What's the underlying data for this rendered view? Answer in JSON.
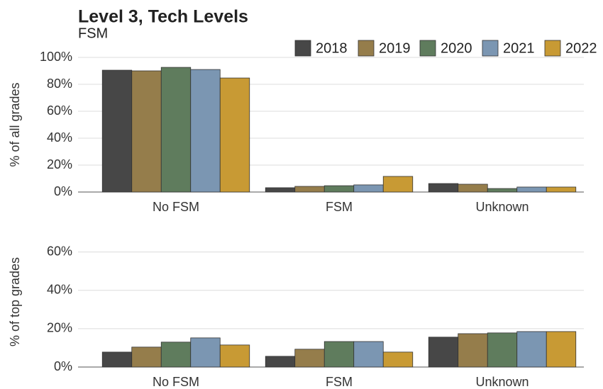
{
  "title": "Level 3, Tech Levels",
  "subtitle": "FSM",
  "chart_data": [
    {
      "type": "bar",
      "ylabel": "% of all grades",
      "categories": [
        "No FSM",
        "FSM",
        "Unknown"
      ],
      "series": [
        {
          "name": "2018",
          "color": "#474747",
          "values": [
            90.5,
            3.2,
            6.3
          ]
        },
        {
          "name": "2019",
          "color": "#957d4b",
          "values": [
            90,
            4.2,
            5.8
          ]
        },
        {
          "name": "2020",
          "color": "#5f7c5d",
          "values": [
            92.6,
            4.7,
            2.6
          ]
        },
        {
          "name": "2021",
          "color": "#7b96b2",
          "values": [
            91,
            5.3,
            3.7
          ]
        },
        {
          "name": "2022",
          "color": "#c89a34",
          "values": [
            84.7,
            11.6,
            3.7
          ]
        }
      ],
      "ylim": [
        0,
        100
      ],
      "yticks": [
        {
          "value": 0,
          "label": "0%"
        },
        {
          "value": 20,
          "label": "20%"
        },
        {
          "value": 40,
          "label": "40%"
        },
        {
          "value": 60,
          "label": "60%"
        },
        {
          "value": 80,
          "label": "80%"
        },
        {
          "value": 100,
          "label": "100%"
        }
      ],
      "grid": true,
      "legend": "top-right"
    },
    {
      "type": "bar",
      "ylabel": "% of top grades",
      "categories": [
        "No FSM",
        "FSM",
        "Unknown"
      ],
      "series": [
        {
          "color": "#474747",
          "values": [
            7.8,
            5.6,
            15.6
          ]
        },
        {
          "color": "#957d4b",
          "values": [
            10.4,
            9.3,
            17.4
          ]
        },
        {
          "color": "#5f7c5d",
          "values": [
            13,
            13.3,
            17.8
          ]
        },
        {
          "color": "#7b96b2",
          "values": [
            15.2,
            13.3,
            18.5
          ]
        },
        {
          "color": "#c89a34",
          "values": [
            11.5,
            7.8,
            18.5
          ]
        }
      ],
      "ylim": [
        0,
        68
      ],
      "yticks": [
        {
          "value": 0,
          "label": "0%"
        },
        {
          "value": 20,
          "label": "20%"
        },
        {
          "value": 40,
          "label": "40%"
        },
        {
          "value": 60,
          "label": "60%"
        }
      ],
      "grid": true
    }
  ]
}
